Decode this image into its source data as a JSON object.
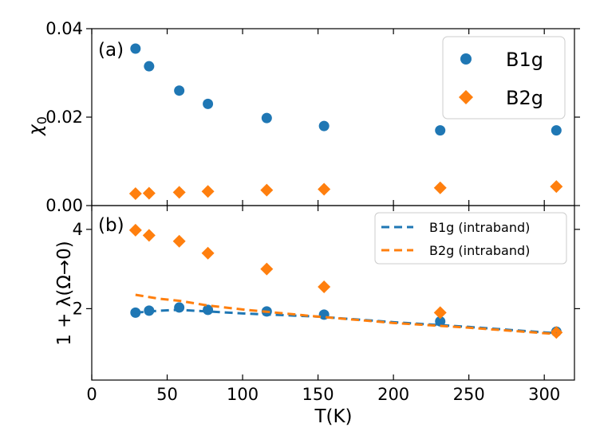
{
  "chart_data": {
    "type": "scatter",
    "shared_x": {
      "label": "T(K)",
      "lim": [
        0,
        320
      ],
      "ticks": [
        0,
        50,
        100,
        150,
        200,
        250,
        300
      ]
    },
    "colors": {
      "b1g": "#1f77b4",
      "b2g": "#ff7f0e"
    },
    "panels": [
      {
        "id": "a",
        "panel_label": "(a)",
        "ylabel": "χ",
        "ylabel_sub": "0",
        "ylim": [
          0,
          0.04
        ],
        "yticks": [
          0.0,
          0.02,
          0.04
        ],
        "ytick_labels": [
          "0.00",
          "0.02",
          "0.04"
        ],
        "legend": {
          "position": "top-right"
        },
        "series": [
          {
            "name": "B1g",
            "kind": "points",
            "marker": "circle",
            "color": "#1f77b4",
            "x": [
              29,
              38,
              58,
              77,
              116,
              154,
              231,
              308
            ],
            "y": [
              0.0355,
              0.0315,
              0.026,
              0.023,
              0.0198,
              0.018,
              0.017,
              0.017
            ]
          },
          {
            "name": "B2g",
            "kind": "points",
            "marker": "diamond",
            "color": "#ff7f0e",
            "x": [
              29,
              38,
              58,
              77,
              116,
              154,
              231,
              308
            ],
            "y": [
              0.0027,
              0.0028,
              0.003,
              0.0032,
              0.0035,
              0.0037,
              0.004,
              0.0043
            ]
          }
        ]
      },
      {
        "id": "b",
        "panel_label": "(b)",
        "ylabel": "1 + λ(Ω→0)",
        "ylim": [
          0.2,
          4.6
        ],
        "yticks": [
          2,
          4
        ],
        "ytick_labels": [
          "2",
          "4"
        ],
        "legend": {
          "position": "top-right"
        },
        "series": [
          {
            "name": "B1g points",
            "kind": "points",
            "marker": "circle",
            "color": "#1f77b4",
            "x": [
              29,
              38,
              58,
              77,
              116,
              154,
              231,
              308
            ],
            "y": [
              1.9,
              1.95,
              2.03,
              1.97,
              1.93,
              1.85,
              1.68,
              1.42
            ]
          },
          {
            "name": "B2g points",
            "kind": "points",
            "marker": "diamond",
            "color": "#ff7f0e",
            "x": [
              29,
              38,
              58,
              77,
              116,
              154,
              231,
              308
            ],
            "y": [
              3.98,
              3.85,
              3.7,
              3.4,
              3.0,
              2.55,
              1.9,
              1.4
            ]
          },
          {
            "name": "B1g (intraband)",
            "kind": "line",
            "dash": true,
            "color": "#1f77b4",
            "x": [
              29,
              45,
              58,
              77,
              100,
              150,
              200,
              250,
              308
            ],
            "y": [
              1.9,
              1.95,
              1.97,
              1.93,
              1.88,
              1.8,
              1.66,
              1.54,
              1.38
            ]
          },
          {
            "name": "B2g (intraband)",
            "kind": "line",
            "dash": true,
            "color": "#ff7f0e",
            "x": [
              29,
              45,
              58,
              77,
              100,
              150,
              200,
              250,
              308
            ],
            "y": [
              2.35,
              2.25,
              2.2,
              2.08,
              1.98,
              1.8,
              1.64,
              1.52,
              1.36
            ]
          }
        ],
        "legend_entries": [
          "B1g (intraband)",
          "B2g (intraband)"
        ]
      }
    ]
  },
  "legend_a": {
    "b1g": "B1g",
    "b2g": "B2g"
  },
  "legend_b": {
    "b1g": "B1g (intraband)",
    "b2g": "B2g (intraband)"
  }
}
